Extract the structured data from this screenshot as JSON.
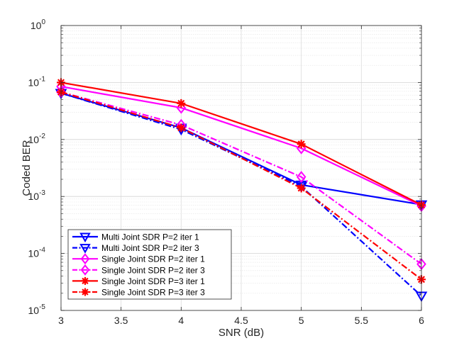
{
  "chart_data": {
    "type": "line",
    "title": "",
    "xlabel": "SNR (dB)",
    "ylabel": "Coded BER",
    "yscale": "log",
    "xlim": [
      3,
      6
    ],
    "ylim": [
      1e-05,
      1
    ],
    "grid": true,
    "legend_position": "bottom-left",
    "x": [
      3,
      4,
      5,
      6
    ],
    "x_ticks": [
      {
        "value": 3,
        "label": "3"
      },
      {
        "value": 3.5,
        "label": "3.5"
      },
      {
        "value": 4,
        "label": "4"
      },
      {
        "value": 4.5,
        "label": "4.5"
      },
      {
        "value": 5,
        "label": "5"
      },
      {
        "value": 5.5,
        "label": "5.5"
      },
      {
        "value": 6,
        "label": "6"
      }
    ],
    "y_ticks": [
      {
        "value": 1e-05,
        "base": "10",
        "exp": "-5"
      },
      {
        "value": 0.0001,
        "base": "10",
        "exp": "-4"
      },
      {
        "value": 0.001,
        "base": "10",
        "exp": "-3"
      },
      {
        "value": 0.01,
        "base": "10",
        "exp": "-2"
      },
      {
        "value": 0.1,
        "base": "10",
        "exp": "-1"
      },
      {
        "value": 1,
        "base": "10",
        "exp": "0"
      }
    ],
    "series": [
      {
        "name": "Multi Joint SDR P=2 iter 1",
        "color": "#0000ff",
        "linestyle": "solid",
        "marker": "triangle-down",
        "values": [
          0.065,
          0.016,
          0.0016,
          0.00072
        ]
      },
      {
        "name": "Multi Joint SDR P=2 iter 3",
        "color": "#0000ff",
        "linestyle": "dashdot",
        "marker": "triangle-down",
        "values": [
          0.065,
          0.015,
          0.0015,
          1.8e-05
        ]
      },
      {
        "name": "Single Joint SDR P=2 iter 1",
        "color": "#ff00ff",
        "linestyle": "solid",
        "marker": "diamond",
        "values": [
          0.085,
          0.036,
          0.007,
          0.00068
        ]
      },
      {
        "name": "Single Joint SDR P=2 iter 3",
        "color": "#ff00ff",
        "linestyle": "dashdot",
        "marker": "diamond",
        "values": [
          0.068,
          0.018,
          0.0022,
          6.5e-05
        ]
      },
      {
        "name": "Single Joint SDR P=3 iter 1",
        "color": "#ff0000",
        "linestyle": "solid",
        "marker": "asterisk",
        "values": [
          0.1,
          0.043,
          0.0083,
          0.00071
        ]
      },
      {
        "name": "Single Joint SDR P=3 iter 3",
        "color": "#ff0000",
        "linestyle": "dashdot",
        "marker": "asterisk",
        "values": [
          0.068,
          0.016,
          0.0014,
          3.5e-05
        ]
      }
    ]
  }
}
